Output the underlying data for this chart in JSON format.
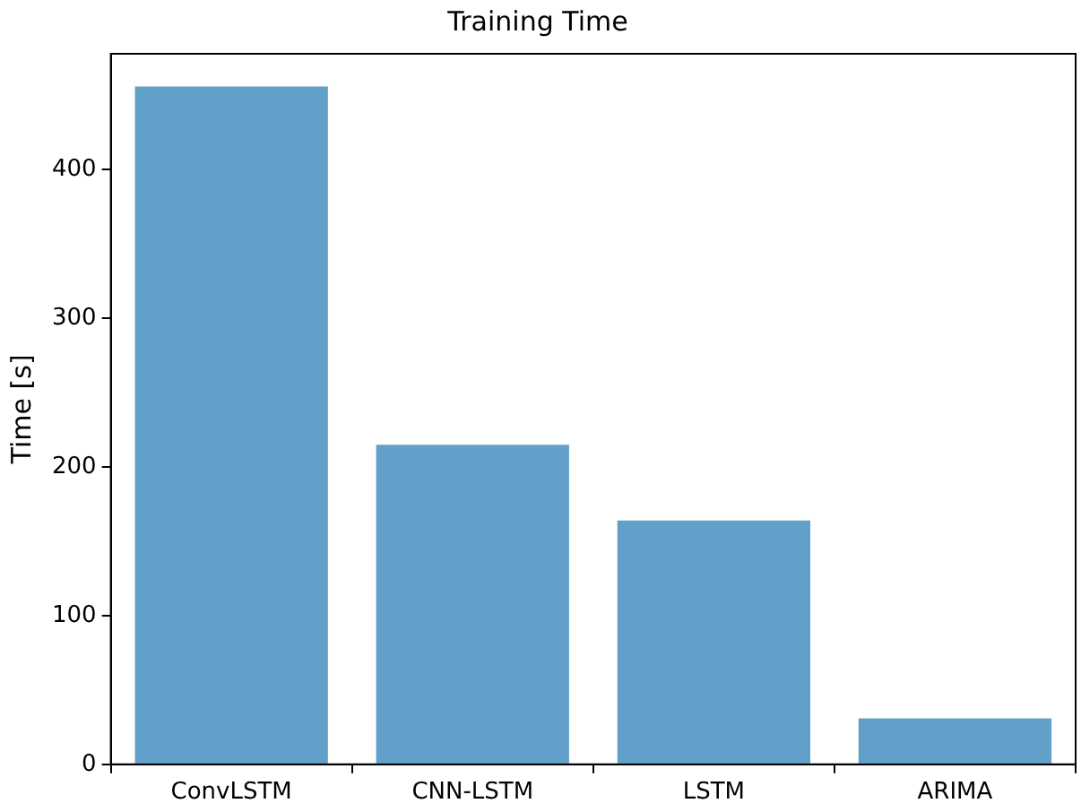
{
  "chart_data": {
    "type": "bar",
    "title": "Training Time",
    "ylabel": "Time [s]",
    "categories": [
      "ConvLSTM",
      "CNN-LSTM",
      "LSTM",
      "ARIMA"
    ],
    "values": [
      456,
      215,
      164,
      31
    ],
    "color": "#62a0ca",
    "ylim": [
      0,
      478
    ],
    "yticks": [
      0,
      100,
      200,
      300,
      400
    ],
    "grid": false,
    "legend": false
  }
}
